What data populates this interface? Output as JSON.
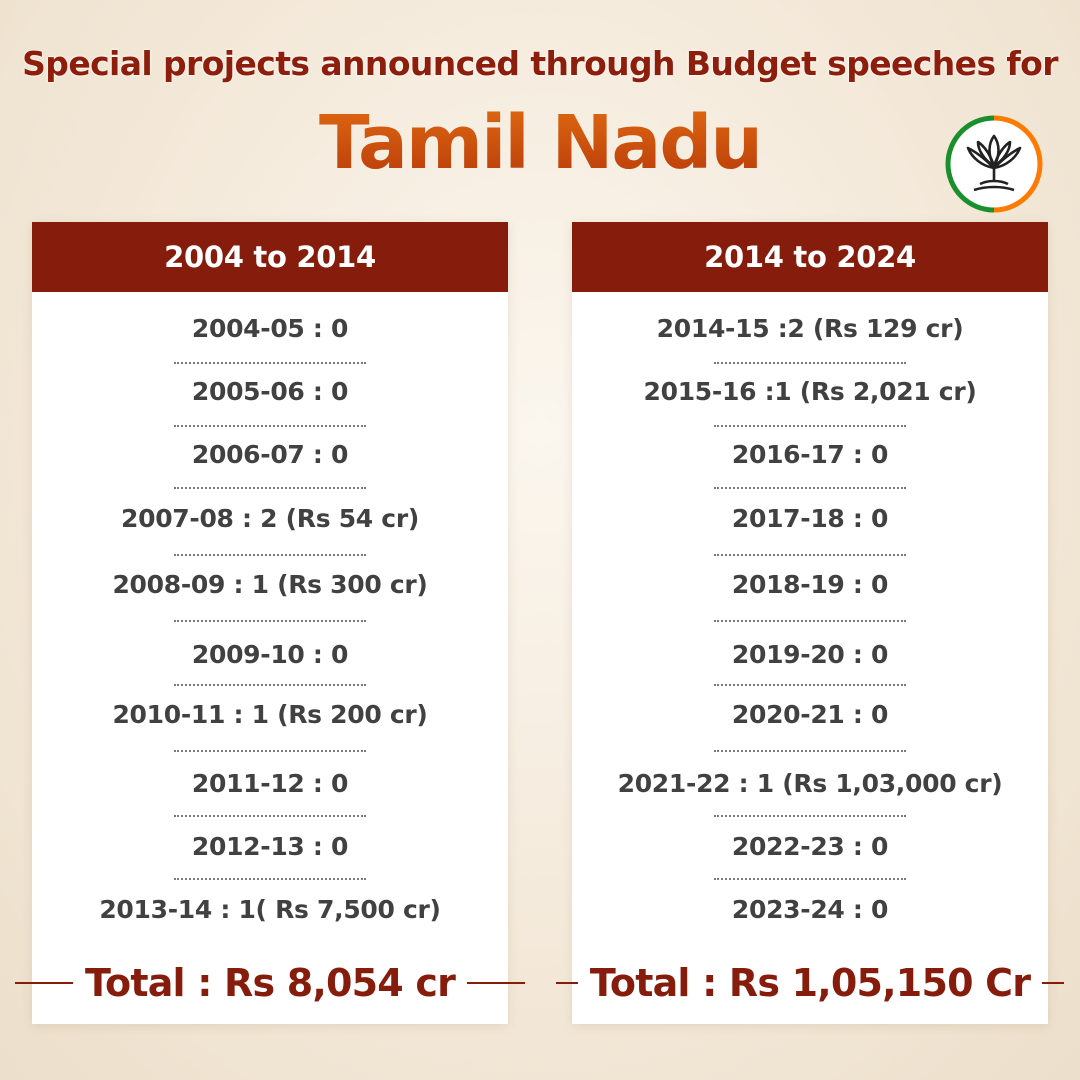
{
  "header": {
    "subtitle": "Special projects announced through Budget speeches for",
    "title": "Tamil Nadu"
  },
  "logo": {
    "icon": "lotus-icon",
    "colors": [
      "#ff7a00",
      "#1a8f2e"
    ]
  },
  "colors": {
    "panel_header": "#861c0c",
    "title_gradient": [
      "#e06a12",
      "#b83a0a"
    ],
    "text": "#414141"
  },
  "left_panel": {
    "heading": "2004 to 2014",
    "rows": [
      "2004-05 : 0",
      "2005-06 : 0",
      "2006-07 : 0",
      "2007-08 : 2 (Rs 54 cr)",
      "2008-09 : 1 (Rs 300 cr)",
      "2009-10 : 0",
      "2010-11 : 1 (Rs 200 cr)",
      "2011-12 : 0",
      "2012-13 : 0",
      "2013-14 : 1( Rs 7,500 cr)"
    ],
    "total": "Total : Rs 8,054 cr"
  },
  "right_panel": {
    "heading": "2014 to 2024",
    "rows": [
      "2014-15 :2 (Rs 129 cr)",
      "2015-16 :1 (Rs 2,021 cr)",
      "2016-17 : 0",
      "2017-18 : 0",
      "2018-19 : 0",
      "2019-20 : 0",
      "2020-21 : 0",
      "2021-22 : 1 (Rs 1,03,000 cr)",
      "2022-23 : 0",
      "2023-24 : 0"
    ],
    "total": "Total : Rs 1,05,150 Cr"
  }
}
